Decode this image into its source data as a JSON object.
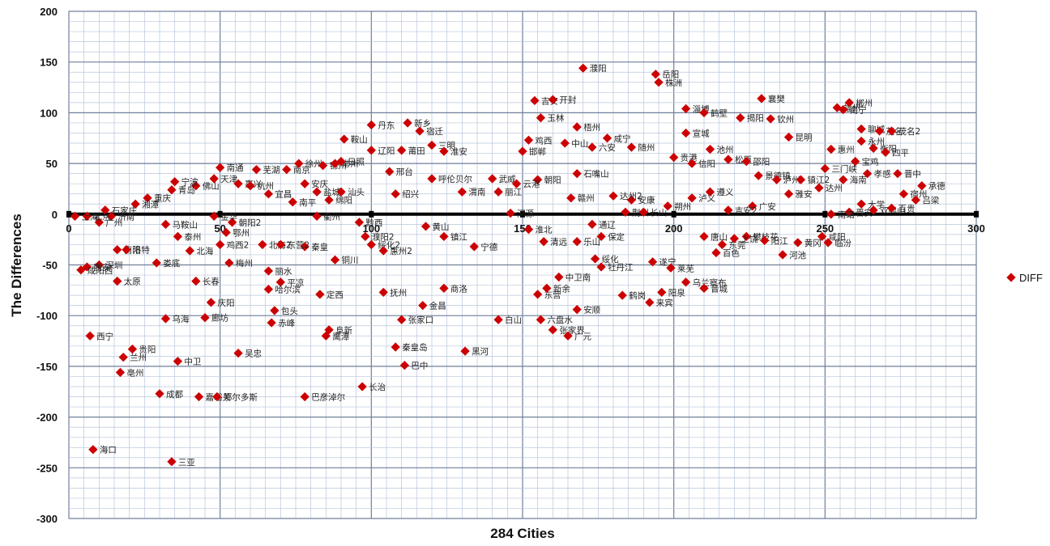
{
  "chart_data": {
    "type": "scatter",
    "xlabel": "284 Cities",
    "ylabel": "The Differences",
    "xlim": [
      0,
      300
    ],
    "ylim": [
      -300,
      200
    ],
    "x_ticks": [
      "0",
      "50",
      "100",
      "150",
      "200",
      "250",
      "300"
    ],
    "y_ticks": [
      "200",
      "150",
      "100",
      "50",
      "0",
      "-50",
      "-100",
      "-150",
      "-200",
      "-250",
      "-300"
    ],
    "grid": true,
    "legend": "right",
    "marker_color": "#cc0000",
    "series": [
      {
        "name": "DIFF",
        "points": [
          {
            "x": 8,
            "y": -232,
            "label": "海口"
          },
          {
            "x": 34,
            "y": -244,
            "label": "三亚"
          },
          {
            "x": 7,
            "y": -120,
            "label": "西宁"
          },
          {
            "x": 17,
            "y": -156,
            "label": "亳州"
          },
          {
            "x": 18,
            "y": -141,
            "label": "兰州"
          },
          {
            "x": 21,
            "y": -133,
            "label": "贵阳"
          },
          {
            "x": 36,
            "y": -145,
            "label": "中卫"
          },
          {
            "x": 30,
            "y": -177,
            "label": "成都"
          },
          {
            "x": 43,
            "y": -180,
            "label": "嘉峪关"
          },
          {
            "x": 49,
            "y": -180,
            "label": "鄂尔多斯"
          },
          {
            "x": 78,
            "y": -180,
            "label": "巴彦淖尔"
          },
          {
            "x": 97,
            "y": -170,
            "label": "长治"
          },
          {
            "x": 56,
            "y": -137,
            "label": "吴忠"
          },
          {
            "x": 32,
            "y": -103,
            "label": "乌海"
          },
          {
            "x": 45,
            "y": -102,
            "label": "廊坊"
          },
          {
            "x": 47,
            "y": -87,
            "label": "庆阳"
          },
          {
            "x": 16,
            "y": -66,
            "label": "太原"
          },
          {
            "x": 29,
            "y": -48,
            "label": "娄底"
          },
          {
            "x": 42,
            "y": -66,
            "label": "长春"
          },
          {
            "x": 53,
            "y": -48,
            "label": "梅州"
          },
          {
            "x": 66,
            "y": -56,
            "label": "丽水"
          },
          {
            "x": 70,
            "y": -67,
            "label": "平凉"
          },
          {
            "x": 66,
            "y": -74,
            "label": "哈尔滨"
          },
          {
            "x": 68,
            "y": -95,
            "label": "包头"
          },
          {
            "x": 67,
            "y": -107,
            "label": "赤峰"
          },
          {
            "x": 83,
            "y": -79,
            "label": "定西"
          },
          {
            "x": 86,
            "y": -114,
            "label": "阜新"
          },
          {
            "x": 85,
            "y": -120,
            "label": "鹰潭"
          },
          {
            "x": 104,
            "y": -77,
            "label": "抚州"
          },
          {
            "x": 110,
            "y": -104,
            "label": "张家口"
          },
          {
            "x": 108,
            "y": -131,
            "label": "秦皇岛"
          },
          {
            "x": 117,
            "y": -90,
            "label": "金昌"
          },
          {
            "x": 124,
            "y": -73,
            "label": "商洛"
          },
          {
            "x": 111,
            "y": -149,
            "label": "巴中"
          },
          {
            "x": 131,
            "y": -135,
            "label": "黑河"
          },
          {
            "x": 142,
            "y": -104,
            "label": "白山"
          },
          {
            "x": 156,
            "y": -104,
            "label": "六盘水"
          },
          {
            "x": 160,
            "y": -114,
            "label": "张家界"
          },
          {
            "x": 165,
            "y": -120,
            "label": "广元"
          },
          {
            "x": 168,
            "y": -94,
            "label": "安顺"
          },
          {
            "x": 155,
            "y": -79,
            "label": "东营"
          },
          {
            "x": 158,
            "y": -73,
            "label": "新余"
          },
          {
            "x": 162,
            "y": -62,
            "label": "中卫南"
          },
          {
            "x": 174,
            "y": -44,
            "label": "绥化"
          },
          {
            "x": 176,
            "y": -52,
            "label": "牡丹江"
          },
          {
            "x": 183,
            "y": -80,
            "label": "鹤岗"
          },
          {
            "x": 192,
            "y": -87,
            "label": "来宾"
          },
          {
            "x": 196,
            "y": -77,
            "label": "阳泉"
          },
          {
            "x": 193,
            "y": -47,
            "label": "遂宁"
          },
          {
            "x": 199,
            "y": -53,
            "label": "莱芜"
          },
          {
            "x": 204,
            "y": -67,
            "label": "乌兰察布"
          },
          {
            "x": 210,
            "y": -73,
            "label": "晋城"
          },
          {
            "x": 214,
            "y": -38,
            "label": "百色"
          },
          {
            "x": 236,
            "y": -40,
            "label": "河池"
          },
          {
            "x": 224,
            "y": -22,
            "label": "攀枝花"
          },
          {
            "x": 241,
            "y": -28,
            "label": "黄冈"
          },
          {
            "x": 249,
            "y": -22,
            "label": "咸阳"
          },
          {
            "x": 251,
            "y": -28,
            "label": "临汾"
          },
          {
            "x": 154,
            "y": 112,
            "label": "吉安"
          },
          {
            "x": 160,
            "y": 113,
            "label": "开封"
          },
          {
            "x": 156,
            "y": 95,
            "label": "玉林"
          },
          {
            "x": 170,
            "y": 144,
            "label": "濮阳"
          },
          {
            "x": 194,
            "y": 138,
            "label": "岳阳"
          },
          {
            "x": 195,
            "y": 130,
            "label": "株洲"
          },
          {
            "x": 204,
            "y": 104,
            "label": "淄博"
          },
          {
            "x": 210,
            "y": 100,
            "label": "鹤壁"
          },
          {
            "x": 222,
            "y": 95,
            "label": "揭阳"
          },
          {
            "x": 229,
            "y": 114,
            "label": "襄樊"
          },
          {
            "x": 232,
            "y": 94,
            "label": "钦州"
          },
          {
            "x": 254,
            "y": 105,
            "label": "福州"
          },
          {
            "x": 258,
            "y": 110,
            "label": "郴州"
          },
          {
            "x": 256,
            "y": 103,
            "label": "南宁"
          },
          {
            "x": 262,
            "y": 84,
            "label": "聊城"
          },
          {
            "x": 268,
            "y": 82,
            "label": "茂名"
          },
          {
            "x": 272,
            "y": 82,
            "label": "茂名2"
          },
          {
            "x": 262,
            "y": 72,
            "label": "永州"
          },
          {
            "x": 266,
            "y": 65,
            "label": "衡阳"
          },
          {
            "x": 270,
            "y": 61,
            "label": "四平"
          },
          {
            "x": 252,
            "y": 64,
            "label": "惠州"
          },
          {
            "x": 260,
            "y": 52,
            "label": "宝鸡"
          },
          {
            "x": 250,
            "y": 45,
            "label": "三门峡"
          },
          {
            "x": 238,
            "y": 76,
            "label": "昆明"
          },
          {
            "x": 204,
            "y": 80,
            "label": "宣城"
          },
          {
            "x": 178,
            "y": 75,
            "label": "咸宁"
          },
          {
            "x": 168,
            "y": 86,
            "label": "梧州"
          },
          {
            "x": 164,
            "y": 70,
            "label": "中山"
          },
          {
            "x": 186,
            "y": 66,
            "label": "随州"
          },
          {
            "x": 173,
            "y": 66,
            "label": "六安"
          },
          {
            "x": 168,
            "y": 40,
            "label": "石嘴山"
          },
          {
            "x": 112,
            "y": 90,
            "label": "新乡"
          },
          {
            "x": 100,
            "y": 88,
            "label": "丹东"
          },
          {
            "x": 116,
            "y": 82,
            "label": "宿迁"
          },
          {
            "x": 91,
            "y": 74,
            "label": "鞍山"
          },
          {
            "x": 100,
            "y": 63,
            "label": "辽阳"
          },
          {
            "x": 110,
            "y": 63,
            "label": "莆田"
          },
          {
            "x": 120,
            "y": 68,
            "label": "三明"
          },
          {
            "x": 124,
            "y": 62,
            "label": "淮安"
          },
          {
            "x": 152,
            "y": 73,
            "label": "鸡西"
          },
          {
            "x": 150,
            "y": 62,
            "label": "邯郸"
          },
          {
            "x": 155,
            "y": 34,
            "label": "朝阳"
          },
          {
            "x": 140,
            "y": 35,
            "label": "武威"
          },
          {
            "x": 130,
            "y": 22,
            "label": "渭南"
          },
          {
            "x": 142,
            "y": 22,
            "label": "丽江"
          },
          {
            "x": 148,
            "y": 30,
            "label": "云港"
          },
          {
            "x": 166,
            "y": 16,
            "label": "赣州"
          },
          {
            "x": 106,
            "y": 42,
            "label": "邢台"
          },
          {
            "x": 108,
            "y": 20,
            "label": "绍兴"
          },
          {
            "x": 120,
            "y": 35,
            "label": "呼伦贝尔"
          },
          {
            "x": 118,
            "y": -12,
            "label": "黄山"
          },
          {
            "x": 124,
            "y": -22,
            "label": "镇江"
          },
          {
            "x": 134,
            "y": -32,
            "label": "宁德"
          },
          {
            "x": 146,
            "y": 1,
            "label": "河源"
          },
          {
            "x": 152,
            "y": -15,
            "label": "淮北"
          },
          {
            "x": 157,
            "y": -27,
            "label": "清远"
          },
          {
            "x": 168,
            "y": -27,
            "label": "乐山"
          },
          {
            "x": 173,
            "y": -10,
            "label": "通辽"
          },
          {
            "x": 176,
            "y": -22,
            "label": "保定"
          },
          {
            "x": 98,
            "y": -22,
            "label": "濮阳2"
          },
          {
            "x": 100,
            "y": -30,
            "label": "绥化2"
          },
          {
            "x": 104,
            "y": -36,
            "label": "惠州2"
          },
          {
            "x": 96,
            "y": -8,
            "label": "黔西"
          },
          {
            "x": 88,
            "y": -45,
            "label": "铜川"
          },
          {
            "x": 78,
            "y": -32,
            "label": "秦皇"
          },
          {
            "x": 64,
            "y": -30,
            "label": "北海2"
          },
          {
            "x": 70,
            "y": -30,
            "label": "东营2"
          },
          {
            "x": 50,
            "y": -30,
            "label": "鸡西2"
          },
          {
            "x": 40,
            "y": -36,
            "label": "北海"
          },
          {
            "x": 36,
            "y": -22,
            "label": "泰州"
          },
          {
            "x": 16,
            "y": -35,
            "label": "南阳"
          },
          {
            "x": 10,
            "y": -50,
            "label": "深圳"
          },
          {
            "x": 6,
            "y": -52,
            "label": "西安"
          },
          {
            "x": 4,
            "y": -55,
            "label": "咸阳西"
          },
          {
            "x": 19,
            "y": -35,
            "label": "洛特"
          },
          {
            "x": 42,
            "y": 28,
            "label": "佛山"
          },
          {
            "x": 35,
            "y": 32,
            "label": "宁波"
          },
          {
            "x": 34,
            "y": 24,
            "label": "青岛"
          },
          {
            "x": 50,
            "y": 46,
            "label": "南通"
          },
          {
            "x": 48,
            "y": 35,
            "label": "天津"
          },
          {
            "x": 56,
            "y": 30,
            "label": "嘉兴"
          },
          {
            "x": 62,
            "y": 44,
            "label": "芜湖"
          },
          {
            "x": 60,
            "y": 28,
            "label": "杭州"
          },
          {
            "x": 72,
            "y": 44,
            "label": "南京"
          },
          {
            "x": 76,
            "y": 50,
            "label": "徐州"
          },
          {
            "x": 84,
            "y": 48,
            "label": "锦州"
          },
          {
            "x": 88,
            "y": 50,
            "label": "常州"
          },
          {
            "x": 90,
            "y": 52,
            "label": "日照"
          },
          {
            "x": 78,
            "y": 30,
            "label": "安庆"
          },
          {
            "x": 82,
            "y": 22,
            "label": "盐城"
          },
          {
            "x": 74,
            "y": 12,
            "label": "南平"
          },
          {
            "x": 66,
            "y": 20,
            "label": "宜昌"
          },
          {
            "x": 90,
            "y": 22,
            "label": "汕头"
          },
          {
            "x": 86,
            "y": 14,
            "label": "绵阳"
          },
          {
            "x": 82,
            "y": -2,
            "label": "衢州"
          },
          {
            "x": 54,
            "y": -8,
            "label": "朝阳2"
          },
          {
            "x": 52,
            "y": -18,
            "label": "鄂州"
          },
          {
            "x": 48,
            "y": -2,
            "label": "金华"
          },
          {
            "x": 32,
            "y": -10,
            "label": "马鞍山"
          },
          {
            "x": 26,
            "y": 16,
            "label": "重庆"
          },
          {
            "x": 22,
            "y": 10,
            "label": "湘潭"
          },
          {
            "x": 14,
            "y": -2,
            "label": "济南"
          },
          {
            "x": 10,
            "y": -8,
            "label": "广州"
          },
          {
            "x": 12,
            "y": 4,
            "label": "石家庄"
          },
          {
            "x": 6,
            "y": -2,
            "label": "北京"
          },
          {
            "x": 2,
            "y": -2,
            "label": "上海"
          },
          {
            "x": 200,
            "y": 56,
            "label": "贵港"
          },
          {
            "x": 206,
            "y": 50,
            "label": "信阳"
          },
          {
            "x": 212,
            "y": 64,
            "label": "池州"
          },
          {
            "x": 218,
            "y": 54,
            "label": "松原"
          },
          {
            "x": 224,
            "y": 52,
            "label": "邵阳"
          },
          {
            "x": 228,
            "y": 38,
            "label": "景德镇"
          },
          {
            "x": 234,
            "y": 34,
            "label": "泸州"
          },
          {
            "x": 242,
            "y": 34,
            "label": "镇江2"
          },
          {
            "x": 248,
            "y": 26,
            "label": "达州"
          },
          {
            "x": 238,
            "y": 20,
            "label": "雅安"
          },
          {
            "x": 226,
            "y": 8,
            "label": "广安"
          },
          {
            "x": 218,
            "y": 4,
            "label": "吉安2"
          },
          {
            "x": 212,
            "y": 22,
            "label": "遵义"
          },
          {
            "x": 206,
            "y": 16,
            "label": "泸义"
          },
          {
            "x": 198,
            "y": 8,
            "label": "朔州"
          },
          {
            "x": 186,
            "y": 14,
            "label": "安康"
          },
          {
            "x": 180,
            "y": 18,
            "label": "达州2"
          },
          {
            "x": 184,
            "y": 2,
            "label": "荆州"
          },
          {
            "x": 190,
            "y": 2,
            "label": "长山"
          },
          {
            "x": 210,
            "y": -22,
            "label": "唐山"
          },
          {
            "x": 216,
            "y": -30,
            "label": "东莞"
          },
          {
            "x": 220,
            "y": -24,
            "label": "上饶"
          },
          {
            "x": 230,
            "y": -26,
            "label": "阳江"
          },
          {
            "x": 258,
            "y": 2,
            "label": "晋安"
          },
          {
            "x": 252,
            "y": 0,
            "label": "南靖"
          },
          {
            "x": 262,
            "y": 10,
            "label": "大学"
          },
          {
            "x": 266,
            "y": 4,
            "label": "双鸭山"
          },
          {
            "x": 272,
            "y": 6,
            "label": "百贵"
          },
          {
            "x": 276,
            "y": 20,
            "label": "宿州"
          },
          {
            "x": 280,
            "y": 14,
            "label": "吕梁"
          },
          {
            "x": 282,
            "y": 28,
            "label": "承德"
          },
          {
            "x": 274,
            "y": 40,
            "label": "晋中"
          },
          {
            "x": 264,
            "y": 40,
            "label": "孝感"
          },
          {
            "x": 256,
            "y": 34,
            "label": "海南"
          }
        ]
      }
    ]
  },
  "legend_label": "DIFF"
}
